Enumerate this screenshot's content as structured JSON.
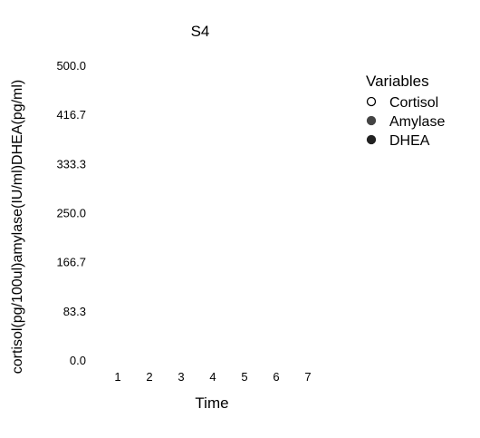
{
  "chart_data": {
    "type": "scatter",
    "title": "S4",
    "xlabel": "Time",
    "ylabel": "cortisol(pg/100ul)amylase(IU/ml)DHEA(pg/ml)",
    "x_ticks": [
      1,
      2,
      3,
      4,
      5,
      6,
      7
    ],
    "y_ticks": [
      "0.0",
      "83.3",
      "166.7",
      "250.0",
      "333.3",
      "416.7",
      "500.0"
    ],
    "ylim": [
      0,
      500
    ],
    "grid": false,
    "legend": {
      "title": "Variables",
      "placement": "right",
      "entries": [
        {
          "name": "Cortisol",
          "marker": "open-circle",
          "color": "#000000"
        },
        {
          "name": "Amylase",
          "marker": "filled-circle",
          "color": "#444444"
        },
        {
          "name": "DHEA",
          "marker": "filled-circle",
          "color": "#222222"
        }
      ]
    },
    "series": [
      {
        "name": "Cortisol",
        "values": []
      },
      {
        "name": "Amylase",
        "values": []
      },
      {
        "name": "DHEA",
        "values": []
      }
    ]
  }
}
